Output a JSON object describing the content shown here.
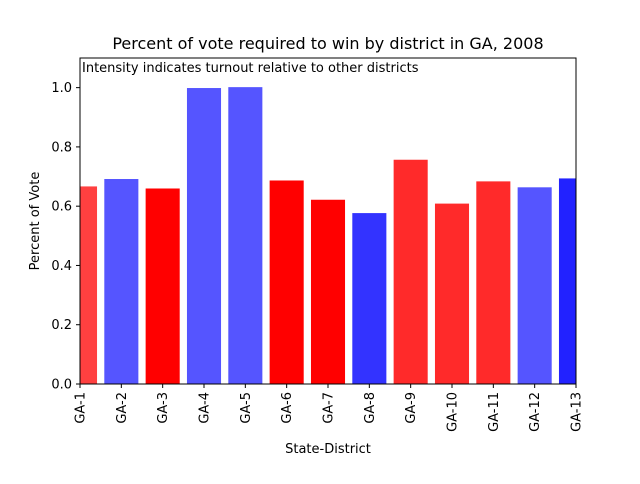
{
  "chart_data": {
    "type": "bar",
    "title": "Percent of vote required to win by district in GA, 2008",
    "annotation": "Intensity indicates turnout relative to other districts",
    "xlabel": "State-District",
    "ylabel": "Percent of Vote",
    "ylim": [
      0,
      1.1
    ],
    "xlim": [
      0,
      12
    ],
    "yticks": [
      "0.0",
      "0.2",
      "0.4",
      "0.6",
      "0.8",
      "1.0"
    ],
    "ytick_values": [
      0,
      0.2,
      0.4,
      0.6,
      0.8,
      1.0
    ],
    "grid": false,
    "legend": "none",
    "categories": [
      "GA-1",
      "GA-2",
      "GA-3",
      "GA-4",
      "GA-5",
      "GA-6",
      "GA-7",
      "GA-8",
      "GA-9",
      "GA-10",
      "GA-11",
      "GA-12",
      "GA-13"
    ],
    "values": [
      0.665,
      0.69,
      0.658,
      0.997,
      1.0,
      0.685,
      0.62,
      0.575,
      0.755,
      0.607,
      0.682,
      0.662,
      0.692
    ],
    "colors": [
      "#ff4040",
      "#5555ff",
      "#ff0000",
      "#5555ff",
      "#5555ff",
      "#ff0000",
      "#ff0000",
      "#3333ff",
      "#ff2a2a",
      "#ff2a2a",
      "#ff2a2a",
      "#5555ff",
      "#2222ff"
    ]
  }
}
